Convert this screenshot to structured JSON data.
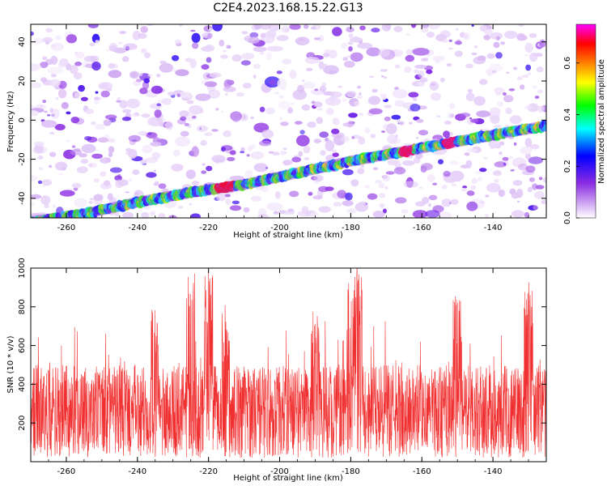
{
  "title": "C2E4.2023.168.15.22.G13",
  "colors": {
    "snr_line": "#f03030",
    "axis": "#000000"
  },
  "chart_data": [
    {
      "type": "heatmap",
      "xlabel": "Height of straight line (km)",
      "ylabel": "Frequency (Hz)",
      "xlim": [
        -270,
        -125
      ],
      "ylim": [
        -50,
        49
      ],
      "x_ticks": [
        -260,
        -240,
        -220,
        -200,
        -180,
        -160,
        -140
      ],
      "y_ticks": [
        -40,
        -20,
        0,
        20,
        40
      ],
      "colorbar": {
        "label": "Normalized spectral amplitude",
        "range": [
          0.0,
          0.75
        ],
        "ticks": [
          0.0,
          0.2,
          0.4,
          0.6
        ],
        "colormap": [
          "#ffffff",
          "#d9b8f5",
          "#8a2be2",
          "#0000ff",
          "#00ffff",
          "#00ff00",
          "#ffff00",
          "#ff8000",
          "#ff0000",
          "#ff00ff"
        ]
      },
      "ridge": {
        "description_points_x": [
          -270,
          -255,
          -240,
          -225,
          -210,
          -195,
          -180,
          -165,
          -150,
          -135,
          -125
        ],
        "description_points_y": [
          -52,
          -48,
          -42,
          -37,
          -33,
          -27,
          -21,
          -16,
          -11,
          -6,
          -3
        ]
      },
      "grid": false
    },
    {
      "type": "line",
      "xlabel": "Height of straight line (km)",
      "ylabel": "SNR (10 * v/v)",
      "xlim": [
        -270,
        -125
      ],
      "ylim": [
        0,
        1000
      ],
      "x_ticks": [
        -260,
        -240,
        -220,
        -200,
        -180,
        -160,
        -140
      ],
      "y_ticks": [
        200,
        400,
        600,
        800,
        1000
      ],
      "series": [
        {
          "color": "#f03030",
          "baseline_mean": 260,
          "typical_range": [
            30,
            650
          ],
          "peaks": [
            {
              "x": -225,
              "y": 1000
            },
            {
              "x": -220,
              "y": 1000
            },
            {
              "x": -178,
              "y": 1000
            },
            {
              "x": -180,
              "y": 900
            },
            {
              "x": -235,
              "y": 760
            },
            {
              "x": -215,
              "y": 770
            },
            {
              "x": -130,
              "y": 890
            },
            {
              "x": -150,
              "y": 830
            },
            {
              "x": -190,
              "y": 760
            }
          ]
        }
      ],
      "grid": false
    }
  ]
}
